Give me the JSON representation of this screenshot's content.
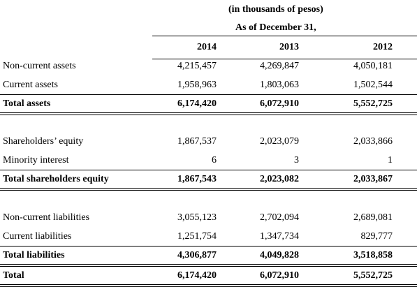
{
  "header": {
    "unit": "(in thousands of pesos)",
    "date": "As of December 31,",
    "years": [
      "2014",
      "2013",
      "2012"
    ]
  },
  "sections": [
    {
      "rows": [
        {
          "label": "Non-current assets",
          "values": [
            "4,215,457",
            "4,269,847",
            "4,050,181"
          ]
        },
        {
          "label": "Current assets",
          "values": [
            "1,958,963",
            "1,803,063",
            "1,502,544"
          ]
        },
        {
          "label": "Total assets",
          "values": [
            "6,174,420",
            "6,072,910",
            "5,552,725"
          ]
        }
      ]
    },
    {
      "rows": [
        {
          "label": "Shareholders’ equity",
          "values": [
            "1,867,537",
            "2,023,079",
            "2,033,866"
          ]
        },
        {
          "label": "Minority interest",
          "values": [
            "6",
            "3",
            "1"
          ]
        },
        {
          "label": "Total shareholders equity",
          "values": [
            "1,867,543",
            "2,023,082",
            "2,033,867"
          ]
        }
      ]
    },
    {
      "rows": [
        {
          "label": "Non-current liabilities",
          "values": [
            "3,055,123",
            "2,702,094",
            "2,689,081"
          ]
        },
        {
          "label": "Current liabilities",
          "values": [
            "1,251,754",
            "1,347,734",
            "829,777"
          ]
        },
        {
          "label": "Total liabilities",
          "values": [
            "4,306,877",
            "4,049,828",
            "3,518,858"
          ]
        }
      ]
    },
    {
      "rows": [
        {
          "label": "Total",
          "values": [
            "6,174,420",
            "6,072,910",
            "5,552,725"
          ]
        }
      ]
    }
  ]
}
